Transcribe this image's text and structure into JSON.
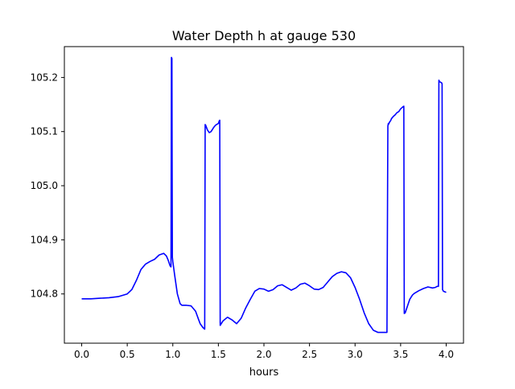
{
  "chart_data": {
    "type": "line",
    "title": "Water Depth h at gauge 530",
    "xlabel": "hours",
    "ylabel": "",
    "xlim": [
      -0.19,
      4.19
    ],
    "ylim": [
      104.709,
      105.257
    ],
    "xticks": [
      0.0,
      0.5,
      1.0,
      1.5,
      2.0,
      2.5,
      3.0,
      3.5,
      4.0
    ],
    "xtick_labels": [
      "0.0",
      "0.5",
      "1.0",
      "1.5",
      "2.0",
      "2.5",
      "3.0",
      "3.5",
      "4.0"
    ],
    "yticks": [
      104.8,
      104.9,
      105.0,
      105.1,
      105.2
    ],
    "ytick_labels": [
      "104.8",
      "104.9",
      "105.0",
      "105.1",
      "105.2"
    ],
    "grid": false,
    "series": [
      {
        "color": "#0000ff",
        "x": [
          0.0,
          0.1,
          0.2,
          0.3,
          0.4,
          0.5,
          0.55,
          0.6,
          0.65,
          0.7,
          0.75,
          0.8,
          0.85,
          0.9,
          0.93,
          0.95,
          0.97,
          0.98,
          0.985,
          0.99,
          0.995,
          1.0,
          1.02,
          1.05,
          1.08,
          1.1,
          1.15,
          1.2,
          1.25,
          1.28,
          1.3,
          1.33,
          1.35,
          1.355,
          1.36,
          1.38,
          1.4,
          1.42,
          1.45,
          1.47,
          1.5,
          1.51,
          1.515,
          1.52,
          1.55,
          1.6,
          1.65,
          1.7,
          1.75,
          1.8,
          1.85,
          1.9,
          1.95,
          2.0,
          2.05,
          2.1,
          2.15,
          2.2,
          2.25,
          2.3,
          2.35,
          2.4,
          2.45,
          2.5,
          2.55,
          2.6,
          2.65,
          2.7,
          2.75,
          2.8,
          2.85,
          2.9,
          2.95,
          3.0,
          3.05,
          3.1,
          3.15,
          3.2,
          3.25,
          3.3,
          3.35,
          3.36,
          3.365,
          3.37,
          3.38,
          3.39,
          3.4,
          3.42,
          3.44,
          3.46,
          3.48,
          3.5,
          3.52,
          3.535,
          3.54,
          3.55,
          3.57,
          3.6,
          3.63,
          3.65,
          3.7,
          3.75,
          3.8,
          3.85,
          3.88,
          3.9,
          3.915,
          3.92,
          3.925,
          3.93,
          3.94,
          3.95,
          3.955,
          3.96,
          3.97,
          4.0
        ],
        "y": [
          104.791,
          104.791,
          104.792,
          104.793,
          104.795,
          104.8,
          104.808,
          104.825,
          104.845,
          104.855,
          104.86,
          104.864,
          104.872,
          104.875,
          104.87,
          104.862,
          104.852,
          104.85,
          105.237,
          105.235,
          104.868,
          104.86,
          104.835,
          104.8,
          104.782,
          104.779,
          104.779,
          104.778,
          104.768,
          104.754,
          104.745,
          104.738,
          104.735,
          105.113,
          105.112,
          105.103,
          105.098,
          105.1,
          105.108,
          105.112,
          105.115,
          105.12,
          105.121,
          104.742,
          104.75,
          104.757,
          104.752,
          104.745,
          104.755,
          104.774,
          104.79,
          104.805,
          104.81,
          104.809,
          104.805,
          104.808,
          104.815,
          104.817,
          104.812,
          104.807,
          104.811,
          104.818,
          104.82,
          104.815,
          104.809,
          104.808,
          104.812,
          104.822,
          104.832,
          104.838,
          104.841,
          104.839,
          104.83,
          104.812,
          104.79,
          104.765,
          104.745,
          104.733,
          104.729,
          104.729,
          104.729,
          105.11,
          105.115,
          105.114,
          105.118,
          105.12,
          105.124,
          105.128,
          105.131,
          105.135,
          105.137,
          105.142,
          105.145,
          105.147,
          104.764,
          104.765,
          104.775,
          104.79,
          104.798,
          104.801,
          104.806,
          104.81,
          104.813,
          104.811,
          104.812,
          104.814,
          104.814,
          105.195,
          105.193,
          105.192,
          105.191,
          105.19,
          105.188,
          104.808,
          104.805,
          104.803
        ]
      }
    ]
  }
}
